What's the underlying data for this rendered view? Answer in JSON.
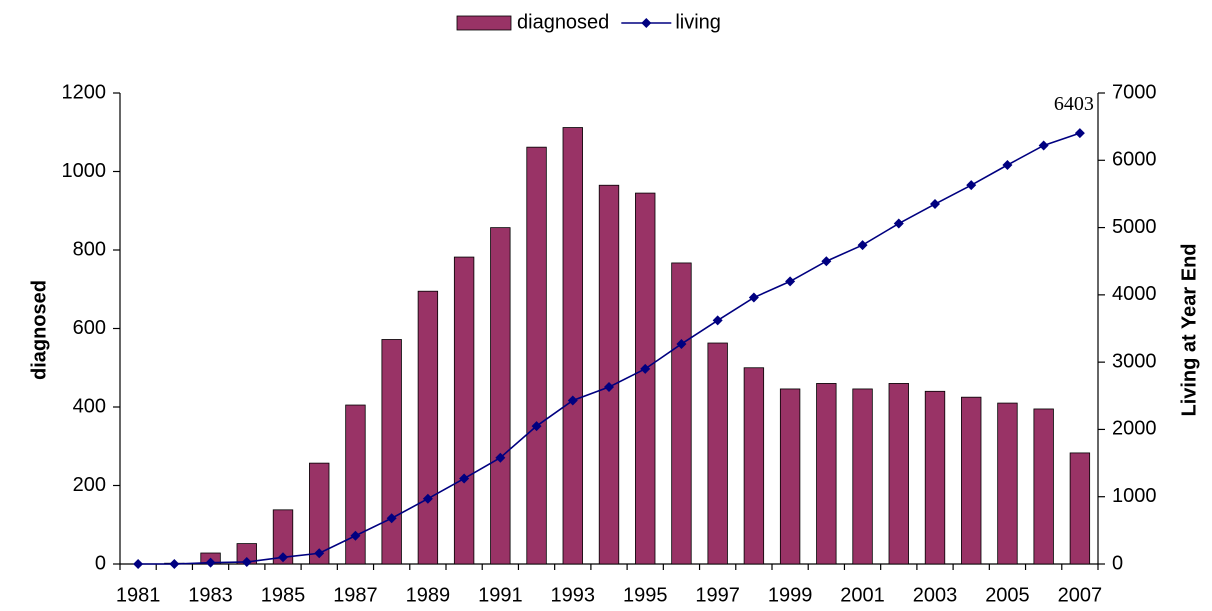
{
  "chart_data": {
    "type": "bar",
    "y_label": "diagnosed",
    "y2_label": "Living at Year End",
    "categories": [
      "1981",
      null,
      "1983",
      null,
      "1985",
      null,
      "1987",
      null,
      "1989",
      null,
      "1991",
      null,
      "1993",
      null,
      "1995",
      null,
      "1997",
      null,
      "1999",
      null,
      "2001",
      null,
      "2003",
      null,
      "2005",
      null,
      "2007"
    ],
    "series": [
      {
        "name": "diagnosed",
        "type": "bar",
        "color": "#993366",
        "values": [
          0,
          2,
          28,
          52,
          138,
          257,
          405,
          572,
          695,
          782,
          857,
          1062,
          1112,
          965,
          945,
          767,
          563,
          500,
          446,
          460,
          446,
          460,
          440,
          425,
          410,
          395,
          283
        ]
      },
      {
        "name": "living",
        "type": "line",
        "axis": "y2",
        "color": "#000080",
        "values": [
          0,
          0,
          20,
          30,
          100,
          160,
          420,
          680,
          970,
          1270,
          1580,
          2050,
          2430,
          2630,
          2900,
          3270,
          3620,
          3960,
          4200,
          4500,
          4740,
          5060,
          5350,
          5630,
          5930,
          6220,
          6403
        ]
      }
    ],
    "ylim": [
      0,
      1200
    ],
    "yticks": [
      0,
      200,
      400,
      600,
      800,
      1000,
      1200
    ],
    "y2lim": [
      0,
      7000
    ],
    "y2ticks": [
      0,
      1000,
      2000,
      3000,
      4000,
      5000,
      6000,
      7000
    ],
    "grid": false,
    "legend": "top"
  }
}
